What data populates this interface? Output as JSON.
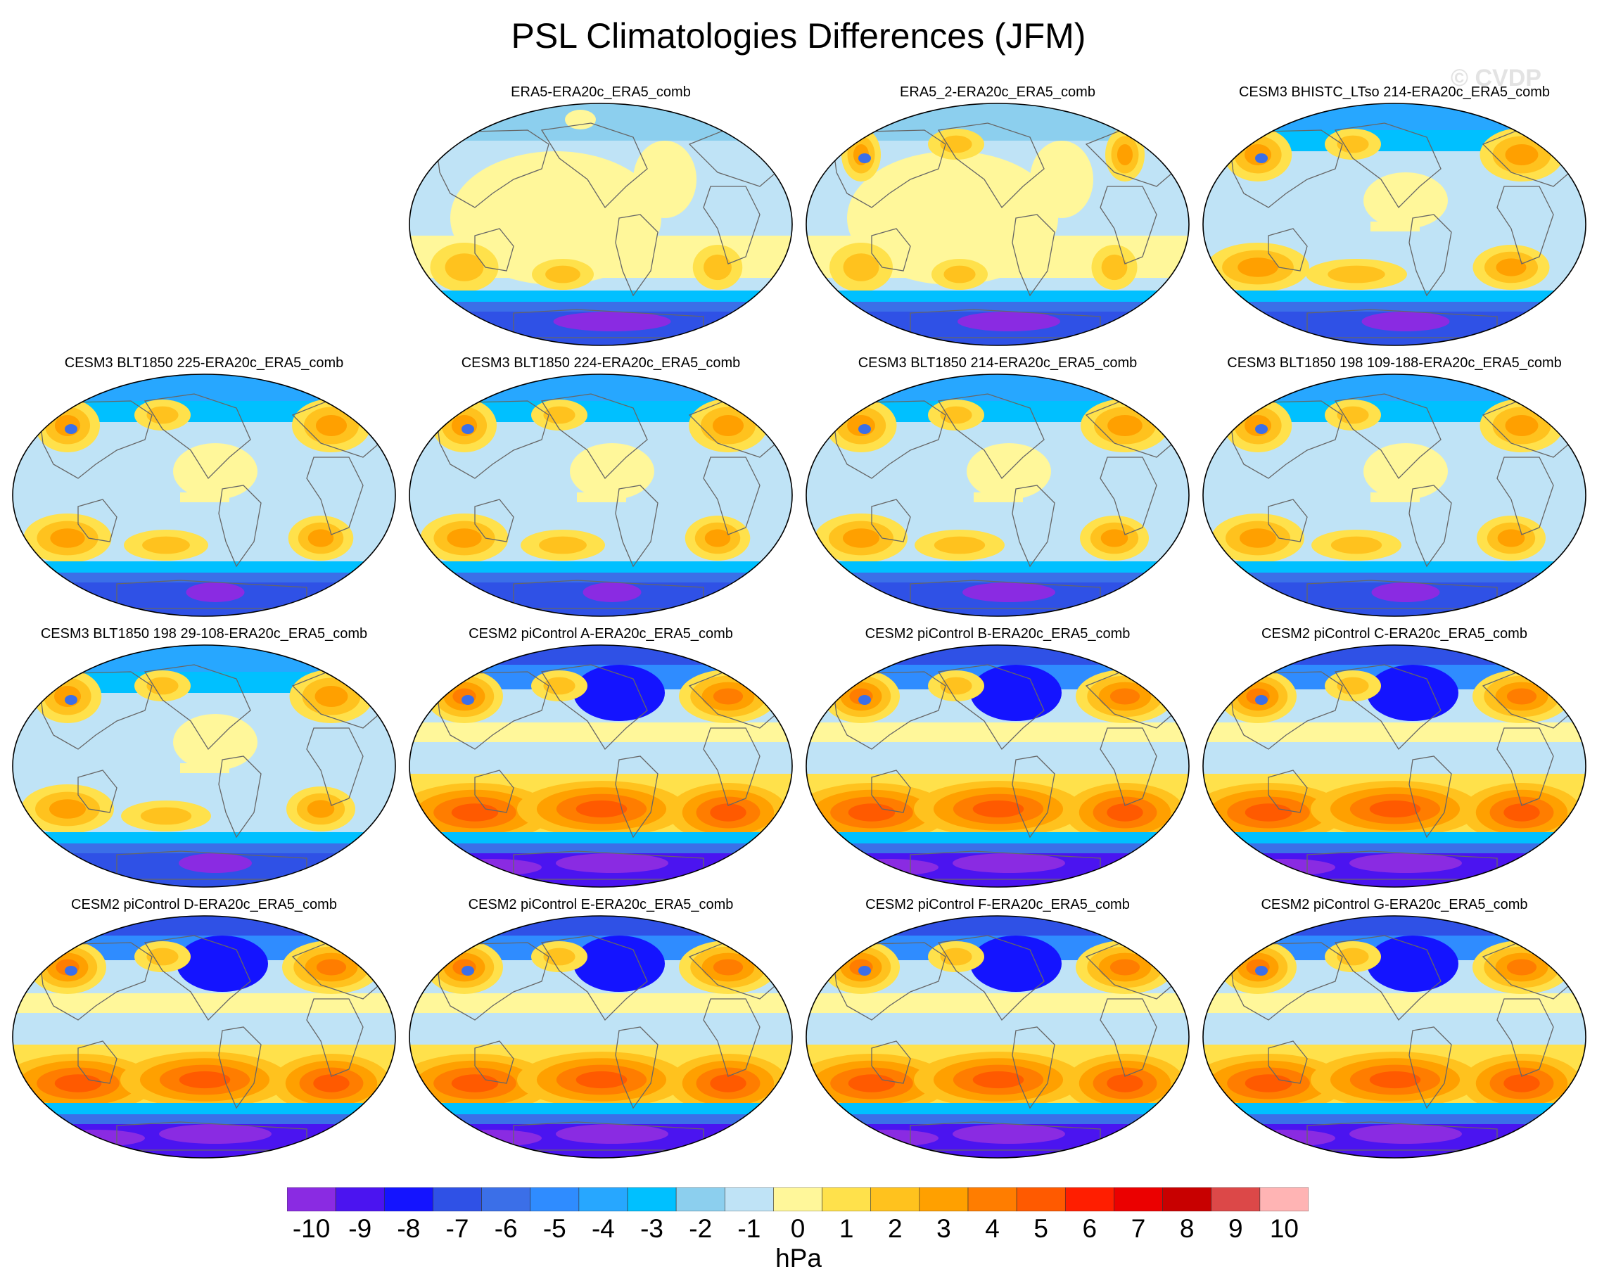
{
  "title": "PSL Climatologies Differences (JFM)",
  "watermark": "© CVDP",
  "chart_data": {
    "type": "filled-contour-map-grid",
    "variable": "PSL",
    "season": "JFM",
    "projection": "Robinson",
    "units": "hPa",
    "colorbar": {
      "levels": [
        -10,
        -9,
        -8,
        -7,
        -6,
        -5,
        -4,
        -3,
        -2,
        -1,
        0,
        1,
        2,
        3,
        4,
        5,
        6,
        7,
        8,
        9,
        10
      ],
      "labels": [
        "-10",
        "-9",
        "-8",
        "-7",
        "-6",
        "-5",
        "-4",
        "-3",
        "-2",
        "-1",
        "0",
        "1",
        "2",
        "3",
        "4",
        "5",
        "6",
        "7",
        "8",
        "9",
        "10"
      ],
      "colors": [
        "#8a2be2",
        "#4b14f0",
        "#1414ff",
        "#2f51e6",
        "#3b6fe8",
        "#2f8cff",
        "#27a7ff",
        "#00c0ff",
        "#8ccfee",
        "#bfe3f6",
        "#fff79a",
        "#ffe14b",
        "#ffc21e",
        "#ffa000",
        "#ff7d00",
        "#ff5a00",
        "#ff1e00",
        "#eb0000",
        "#c80000",
        "#dc4848",
        "#ffb4b4"
      ]
    },
    "panels": [
      {
        "title": "ERA5-ERA20c_ERA5_comb",
        "style": "era",
        "nh": 0,
        "sh": 0.55,
        "sp": 1.05
      },
      {
        "title": "ERA5_2-ERA20c_ERA5_comb",
        "style": "era",
        "nh": 0.4,
        "sh": 0.5,
        "sp": 0.9
      },
      {
        "title": "CESM3 BHISTC_LTso 214-ERA20c_ERA5_comb",
        "style": "cesm3",
        "nh": 0.85,
        "sh": 0.9,
        "sp": 0.75
      },
      {
        "title": "CESM3 BLT1850 225-ERA20c_ERA5_comb",
        "style": "cesm3",
        "nh": 0.8,
        "sh": 0.75,
        "sp": 0.45
      },
      {
        "title": "CESM3 BLT1850 224-ERA20c_ERA5_comb",
        "style": "cesm3",
        "nh": 0.8,
        "sh": 0.75,
        "sp": 0.45
      },
      {
        "title": "CESM3 BLT1850 214-ERA20c_ERA5_comb",
        "style": "cesm3",
        "nh": 0.9,
        "sh": 0.8,
        "sp": 0.8
      },
      {
        "title": "CESM3 BLT1850 198 109-188-ERA20c_ERA5_comb",
        "style": "cesm3",
        "nh": 0.85,
        "sh": 0.8,
        "sp": 0.55
      },
      {
        "title": "CESM3 BLT1850 198 29-108-ERA20c_ERA5_comb",
        "style": "cesm3",
        "nh": 0.85,
        "sh": 0.8,
        "sp": 0.6
      },
      {
        "title": "CESM2 piControl A-ERA20c_ERA5_comb",
        "style": "cesm2",
        "nh": 1,
        "sh": 1,
        "sp": 1
      },
      {
        "title": "CESM2 piControl B-ERA20c_ERA5_comb",
        "style": "cesm2",
        "nh": 1,
        "sh": 1,
        "sp": 1
      },
      {
        "title": "CESM2 piControl C-ERA20c_ERA5_comb",
        "style": "cesm2",
        "nh": 1,
        "sh": 1,
        "sp": 1
      },
      {
        "title": "CESM2 piControl D-ERA20c_ERA5_comb",
        "style": "cesm2",
        "nh": 1,
        "sh": 1.05,
        "sp": 1
      },
      {
        "title": "CESM2 piControl E-ERA20c_ERA5_comb",
        "style": "cesm2",
        "nh": 1,
        "sh": 1.05,
        "sp": 1
      },
      {
        "title": "CESM2 piControl F-ERA20c_ERA5_comb",
        "style": "cesm2",
        "nh": 1,
        "sh": 1.05,
        "sp": 1
      },
      {
        "title": "CESM2 piControl G-ERA20c_ERA5_comb",
        "style": "cesm2",
        "nh": 1,
        "sh": 1.05,
        "sp": 1
      }
    ]
  }
}
